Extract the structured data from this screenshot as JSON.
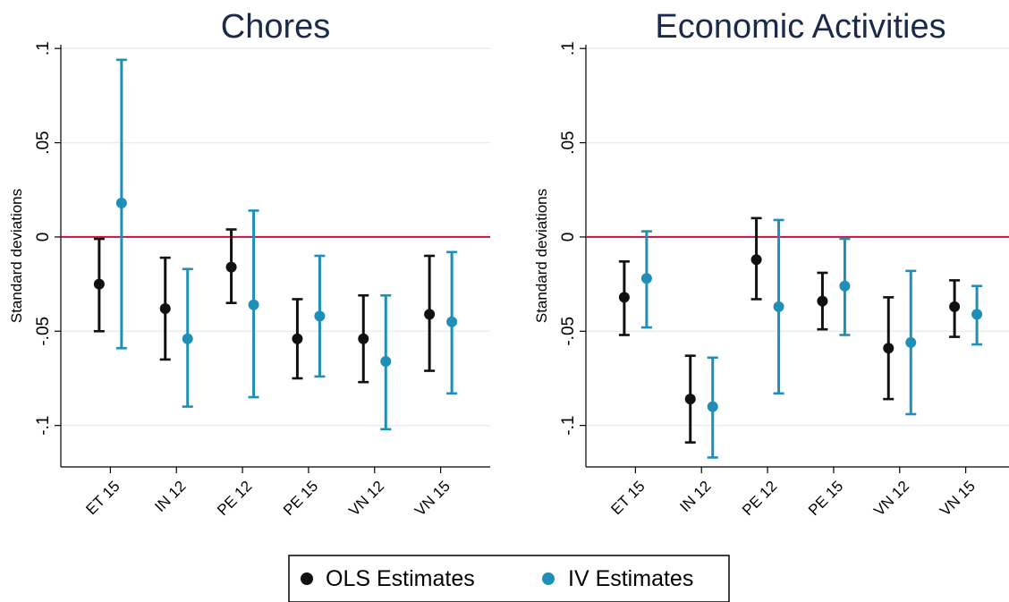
{
  "colors": {
    "ols": "#111111",
    "iv": "#1f8fb8",
    "zero_line": "#c8103e",
    "grid": "#e6ecef",
    "title": "#1b2a4a"
  },
  "legend": {
    "items": [
      {
        "label": "OLS Estimates",
        "color": "#111111"
      },
      {
        "label": "IV Estimates",
        "color": "#1f8fb8"
      }
    ],
    "placement": "bottom-center"
  },
  "chart_data": [
    {
      "type": "scatter",
      "title": "Chores",
      "ylabel": "Standard deviations",
      "categories": [
        "ET 15",
        "IN 12",
        "PE 12",
        "PE 15",
        "VN 12",
        "VN 15"
      ],
      "ylim": [
        -0.122,
        0.102
      ],
      "yticks": [
        0.1,
        0.05,
        0,
        -0.05,
        -0.1
      ],
      "ytick_labels": [
        ".1",
        ".05",
        "0",
        "-.05",
        "-.1"
      ],
      "grid": true,
      "reference_line": 0,
      "series": [
        {
          "name": "OLS Estimates",
          "values": [
            -0.025,
            -0.038,
            -0.016,
            -0.054,
            -0.054,
            -0.041
          ],
          "lower": [
            -0.05,
            -0.065,
            -0.035,
            -0.075,
            -0.077,
            -0.071
          ],
          "upper": [
            -0.001,
            -0.011,
            0.004,
            -0.033,
            -0.031,
            -0.01
          ]
        },
        {
          "name": "IV Estimates",
          "values": [
            0.018,
            -0.054,
            -0.036,
            -0.042,
            -0.066,
            -0.045
          ],
          "lower": [
            -0.059,
            -0.09,
            -0.085,
            -0.074,
            -0.102,
            -0.083
          ],
          "upper": [
            0.094,
            -0.017,
            0.014,
            -0.01,
            -0.031,
            -0.008
          ]
        }
      ]
    },
    {
      "type": "scatter",
      "title": "Economic Activities",
      "ylabel": "Standard deviations",
      "categories": [
        "ET 15",
        "IN 12",
        "PE 12",
        "PE 15",
        "VN 12",
        "VN 15"
      ],
      "ylim": [
        -0.122,
        0.102
      ],
      "yticks": [
        0.1,
        0.05,
        0,
        -0.05,
        -0.1
      ],
      "ytick_labels": [
        ".1",
        ".05",
        "0",
        "-.05",
        "-.1"
      ],
      "grid": true,
      "reference_line": 0,
      "series": [
        {
          "name": "OLS Estimates",
          "values": [
            -0.032,
            -0.086,
            -0.012,
            -0.034,
            -0.059,
            -0.037
          ],
          "lower": [
            -0.052,
            -0.109,
            -0.033,
            -0.049,
            -0.086,
            -0.053
          ],
          "upper": [
            -0.013,
            -0.063,
            0.01,
            -0.019,
            -0.032,
            -0.023
          ]
        },
        {
          "name": "IV Estimates",
          "values": [
            -0.022,
            -0.09,
            -0.037,
            -0.026,
            -0.056,
            -0.041
          ],
          "lower": [
            -0.048,
            -0.117,
            -0.083,
            -0.052,
            -0.094,
            -0.057
          ],
          "upper": [
            0.003,
            -0.064,
            0.009,
            -0.001,
            -0.018,
            -0.026
          ]
        }
      ]
    }
  ]
}
